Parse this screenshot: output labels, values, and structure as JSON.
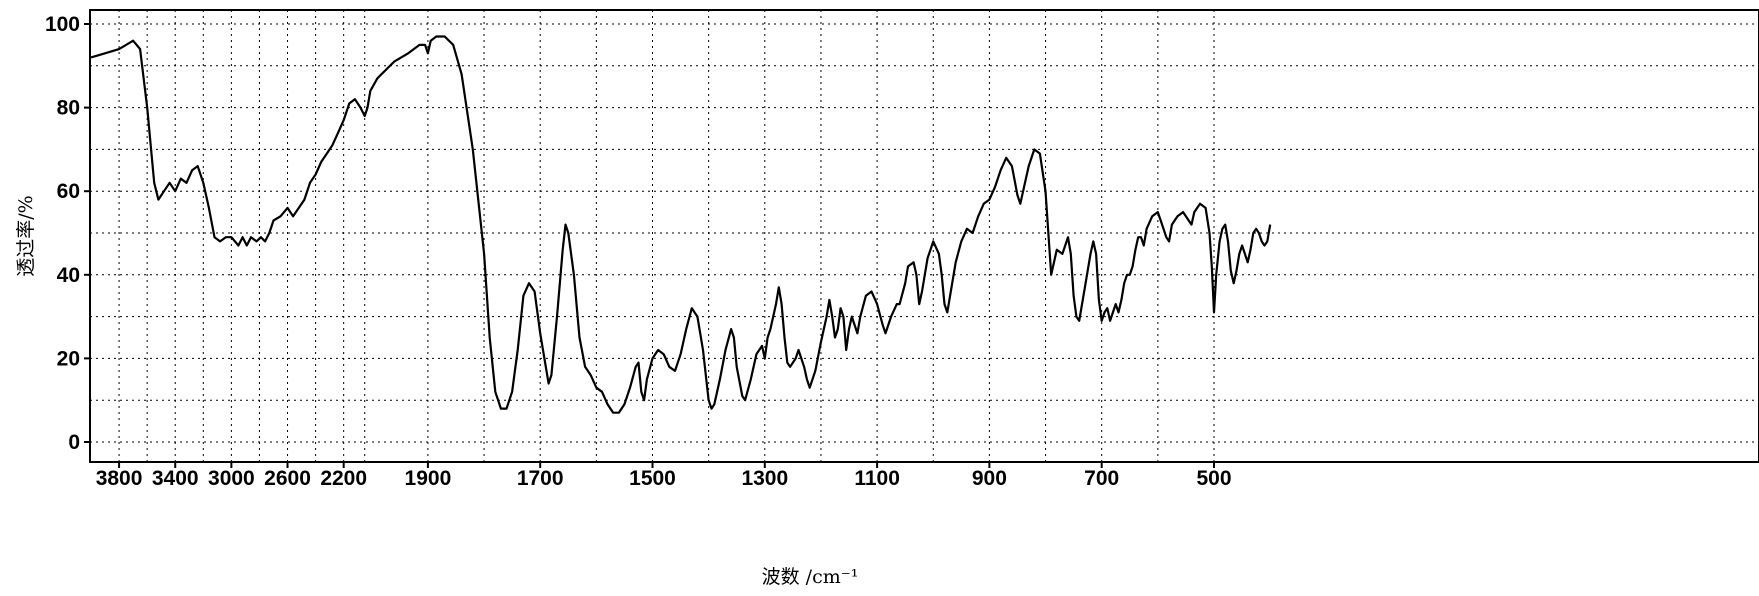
{
  "chart_data": {
    "type": "line",
    "xlabel": "波数 /cm⁻¹",
    "ylabel": "透过率/%",
    "grid": true,
    "x_scale": "piecewise: 4 cm⁻¹ per unit above 2000, linear in cm⁻¹ below 2000 (standard FTIR compression)",
    "xlim": [
      4000,
      400
    ],
    "ylim": [
      -5,
      103
    ],
    "x_ticks": [
      {
        "value": 3800,
        "label": "3800"
      },
      {
        "value": 3400,
        "label": "3400"
      },
      {
        "value": 3000,
        "label": "3000"
      },
      {
        "value": 2600,
        "label": "2600"
      },
      {
        "value": 2200,
        "label": "2200"
      },
      {
        "value": 1900,
        "label": "1900"
      },
      {
        "value": 1700,
        "label": "1700"
      },
      {
        "value": 1500,
        "label": "1500"
      },
      {
        "value": 1300,
        "label": "1300"
      },
      {
        "value": 1100,
        "label": "1100"
      },
      {
        "value": 900,
        "label": "900"
      },
      {
        "value": 700,
        "label": "700"
      },
      {
        "value": 500,
        "label": "500"
      }
    ],
    "y_ticks": [
      {
        "value": 0,
        "label": "0"
      },
      {
        "value": 20,
        "label": "20"
      },
      {
        "value": 40,
        "label": "40"
      },
      {
        "value": 60,
        "label": "60"
      },
      {
        "value": 80,
        "label": "80"
      },
      {
        "value": 100,
        "label": "100"
      }
    ],
    "series": [
      {
        "color": "#000000",
        "points": [
          [
            4000,
            92
          ],
          [
            3900,
            93
          ],
          [
            3800,
            94
          ],
          [
            3700,
            96
          ],
          [
            3650,
            94
          ],
          [
            3600,
            80
          ],
          [
            3550,
            62
          ],
          [
            3520,
            58
          ],
          [
            3480,
            60
          ],
          [
            3440,
            62
          ],
          [
            3400,
            60
          ],
          [
            3360,
            63
          ],
          [
            3320,
            62
          ],
          [
            3280,
            65
          ],
          [
            3240,
            66
          ],
          [
            3200,
            62
          ],
          [
            3160,
            56
          ],
          [
            3120,
            49
          ],
          [
            3080,
            48
          ],
          [
            3040,
            49
          ],
          [
            3000,
            49
          ],
          [
            2950,
            47
          ],
          [
            2920,
            49
          ],
          [
            2890,
            47
          ],
          [
            2860,
            49
          ],
          [
            2820,
            48
          ],
          [
            2790,
            49
          ],
          [
            2760,
            48
          ],
          [
            2730,
            50
          ],
          [
            2700,
            53
          ],
          [
            2650,
            54
          ],
          [
            2600,
            56
          ],
          [
            2560,
            54
          ],
          [
            2520,
            56
          ],
          [
            2480,
            58
          ],
          [
            2440,
            62
          ],
          [
            2400,
            64
          ],
          [
            2360,
            67
          ],
          [
            2320,
            69
          ],
          [
            2280,
            71
          ],
          [
            2240,
            74
          ],
          [
            2200,
            77
          ],
          [
            2160,
            81
          ],
          [
            2120,
            82
          ],
          [
            2080,
            80
          ],
          [
            2050,
            78
          ],
          [
            2030,
            80
          ],
          [
            2010,
            84
          ],
          [
            1990,
            87
          ],
          [
            1960,
            91
          ],
          [
            1935,
            93
          ],
          [
            1915,
            95
          ],
          [
            1905,
            95
          ],
          [
            1900,
            93
          ],
          [
            1895,
            96
          ],
          [
            1885,
            97
          ],
          [
            1870,
            97
          ],
          [
            1855,
            95
          ],
          [
            1840,
            88
          ],
          [
            1820,
            70
          ],
          [
            1800,
            45
          ],
          [
            1790,
            25
          ],
          [
            1780,
            12
          ],
          [
            1770,
            8
          ],
          [
            1760,
            8
          ],
          [
            1750,
            12
          ],
          [
            1740,
            22
          ],
          [
            1730,
            35
          ],
          [
            1720,
            38
          ],
          [
            1710,
            36
          ],
          [
            1700,
            26
          ],
          [
            1690,
            18
          ],
          [
            1685,
            14
          ],
          [
            1680,
            16
          ],
          [
            1670,
            30
          ],
          [
            1660,
            46
          ],
          [
            1655,
            52
          ],
          [
            1650,
            50
          ],
          [
            1640,
            40
          ],
          [
            1630,
            25
          ],
          [
            1620,
            18
          ],
          [
            1610,
            16
          ],
          [
            1600,
            13
          ],
          [
            1590,
            12
          ],
          [
            1580,
            9
          ],
          [
            1570,
            7
          ],
          [
            1560,
            7
          ],
          [
            1550,
            9
          ],
          [
            1540,
            13
          ],
          [
            1530,
            18
          ],
          [
            1525,
            19
          ],
          [
            1520,
            12
          ],
          [
            1515,
            10
          ],
          [
            1510,
            15
          ],
          [
            1500,
            20
          ],
          [
            1490,
            22
          ],
          [
            1480,
            21
          ],
          [
            1470,
            18
          ],
          [
            1460,
            17
          ],
          [
            1450,
            21
          ],
          [
            1440,
            27
          ],
          [
            1430,
            32
          ],
          [
            1420,
            30
          ],
          [
            1410,
            22
          ],
          [
            1400,
            10
          ],
          [
            1395,
            8
          ],
          [
            1390,
            9
          ],
          [
            1380,
            15
          ],
          [
            1370,
            22
          ],
          [
            1360,
            27
          ],
          [
            1355,
            25
          ],
          [
            1350,
            18
          ],
          [
            1340,
            11
          ],
          [
            1335,
            10
          ],
          [
            1325,
            15
          ],
          [
            1315,
            21
          ],
          [
            1305,
            23
          ],
          [
            1300,
            20
          ],
          [
            1295,
            25
          ],
          [
            1290,
            27
          ],
          [
            1280,
            33
          ],
          [
            1275,
            37
          ],
          [
            1270,
            33
          ],
          [
            1265,
            25
          ],
          [
            1260,
            19
          ],
          [
            1255,
            18
          ],
          [
            1245,
            20
          ],
          [
            1240,
            22
          ],
          [
            1230,
            18
          ],
          [
            1225,
            15
          ],
          [
            1220,
            13
          ],
          [
            1210,
            17
          ],
          [
            1200,
            24
          ],
          [
            1190,
            30
          ],
          [
            1185,
            34
          ],
          [
            1180,
            30
          ],
          [
            1175,
            25
          ],
          [
            1170,
            27
          ],
          [
            1165,
            32
          ],
          [
            1160,
            30
          ],
          [
            1155,
            22
          ],
          [
            1150,
            27
          ],
          [
            1145,
            30
          ],
          [
            1140,
            28
          ],
          [
            1135,
            26
          ],
          [
            1130,
            30
          ],
          [
            1120,
            35
          ],
          [
            1110,
            36
          ],
          [
            1100,
            33
          ],
          [
            1090,
            28
          ],
          [
            1085,
            26
          ],
          [
            1075,
            30
          ],
          [
            1065,
            33
          ],
          [
            1060,
            33
          ],
          [
            1050,
            38
          ],
          [
            1045,
            42
          ],
          [
            1035,
            43
          ],
          [
            1030,
            40
          ],
          [
            1025,
            33
          ],
          [
            1020,
            36
          ],
          [
            1010,
            44
          ],
          [
            1000,
            48
          ],
          [
            990,
            45
          ],
          [
            985,
            40
          ],
          [
            980,
            33
          ],
          [
            975,
            31
          ],
          [
            970,
            35
          ],
          [
            960,
            43
          ],
          [
            950,
            48
          ],
          [
            940,
            51
          ],
          [
            930,
            50
          ],
          [
            920,
            54
          ],
          [
            910,
            57
          ],
          [
            900,
            58
          ],
          [
            890,
            61
          ],
          [
            880,
            65
          ],
          [
            870,
            68
          ],
          [
            860,
            66
          ],
          [
            850,
            59
          ],
          [
            845,
            57
          ],
          [
            840,
            60
          ],
          [
            830,
            66
          ],
          [
            820,
            70
          ],
          [
            810,
            69
          ],
          [
            800,
            60
          ],
          [
            790,
            40
          ],
          [
            780,
            46
          ],
          [
            770,
            45
          ],
          [
            760,
            49
          ],
          [
            755,
            45
          ],
          [
            750,
            35
          ],
          [
            745,
            30
          ],
          [
            740,
            29
          ],
          [
            730,
            37
          ],
          [
            720,
            45
          ],
          [
            715,
            48
          ],
          [
            710,
            45
          ],
          [
            705,
            34
          ],
          [
            700,
            29
          ],
          [
            695,
            31
          ],
          [
            690,
            32
          ],
          [
            685,
            29
          ],
          [
            680,
            31
          ],
          [
            675,
            33
          ],
          [
            670,
            31
          ],
          [
            665,
            34
          ],
          [
            660,
            38
          ],
          [
            655,
            40
          ],
          [
            650,
            40
          ],
          [
            645,
            42
          ],
          [
            640,
            46
          ],
          [
            635,
            49
          ],
          [
            630,
            49
          ],
          [
            625,
            47
          ],
          [
            620,
            51
          ],
          [
            610,
            54
          ],
          [
            600,
            55
          ],
          [
            595,
            53
          ],
          [
            590,
            51
          ],
          [
            585,
            49
          ],
          [
            580,
            48
          ],
          [
            575,
            52
          ],
          [
            565,
            54
          ],
          [
            555,
            55
          ],
          [
            545,
            53
          ],
          [
            540,
            52
          ],
          [
            535,
            55
          ],
          [
            525,
            57
          ],
          [
            515,
            56
          ],
          [
            508,
            50
          ],
          [
            504,
            42
          ],
          [
            500,
            31
          ],
          [
            496,
            40
          ],
          [
            490,
            48
          ],
          [
            485,
            51
          ],
          [
            480,
            52
          ],
          [
            475,
            48
          ],
          [
            470,
            41
          ],
          [
            465,
            38
          ],
          [
            460,
            41
          ],
          [
            455,
            45
          ],
          [
            450,
            47
          ],
          [
            445,
            45
          ],
          [
            440,
            43
          ],
          [
            435,
            46
          ],
          [
            430,
            50
          ],
          [
            425,
            51
          ],
          [
            420,
            50
          ],
          [
            415,
            48
          ],
          [
            410,
            47
          ],
          [
            405,
            48
          ],
          [
            400,
            52
          ]
        ]
      }
    ]
  }
}
